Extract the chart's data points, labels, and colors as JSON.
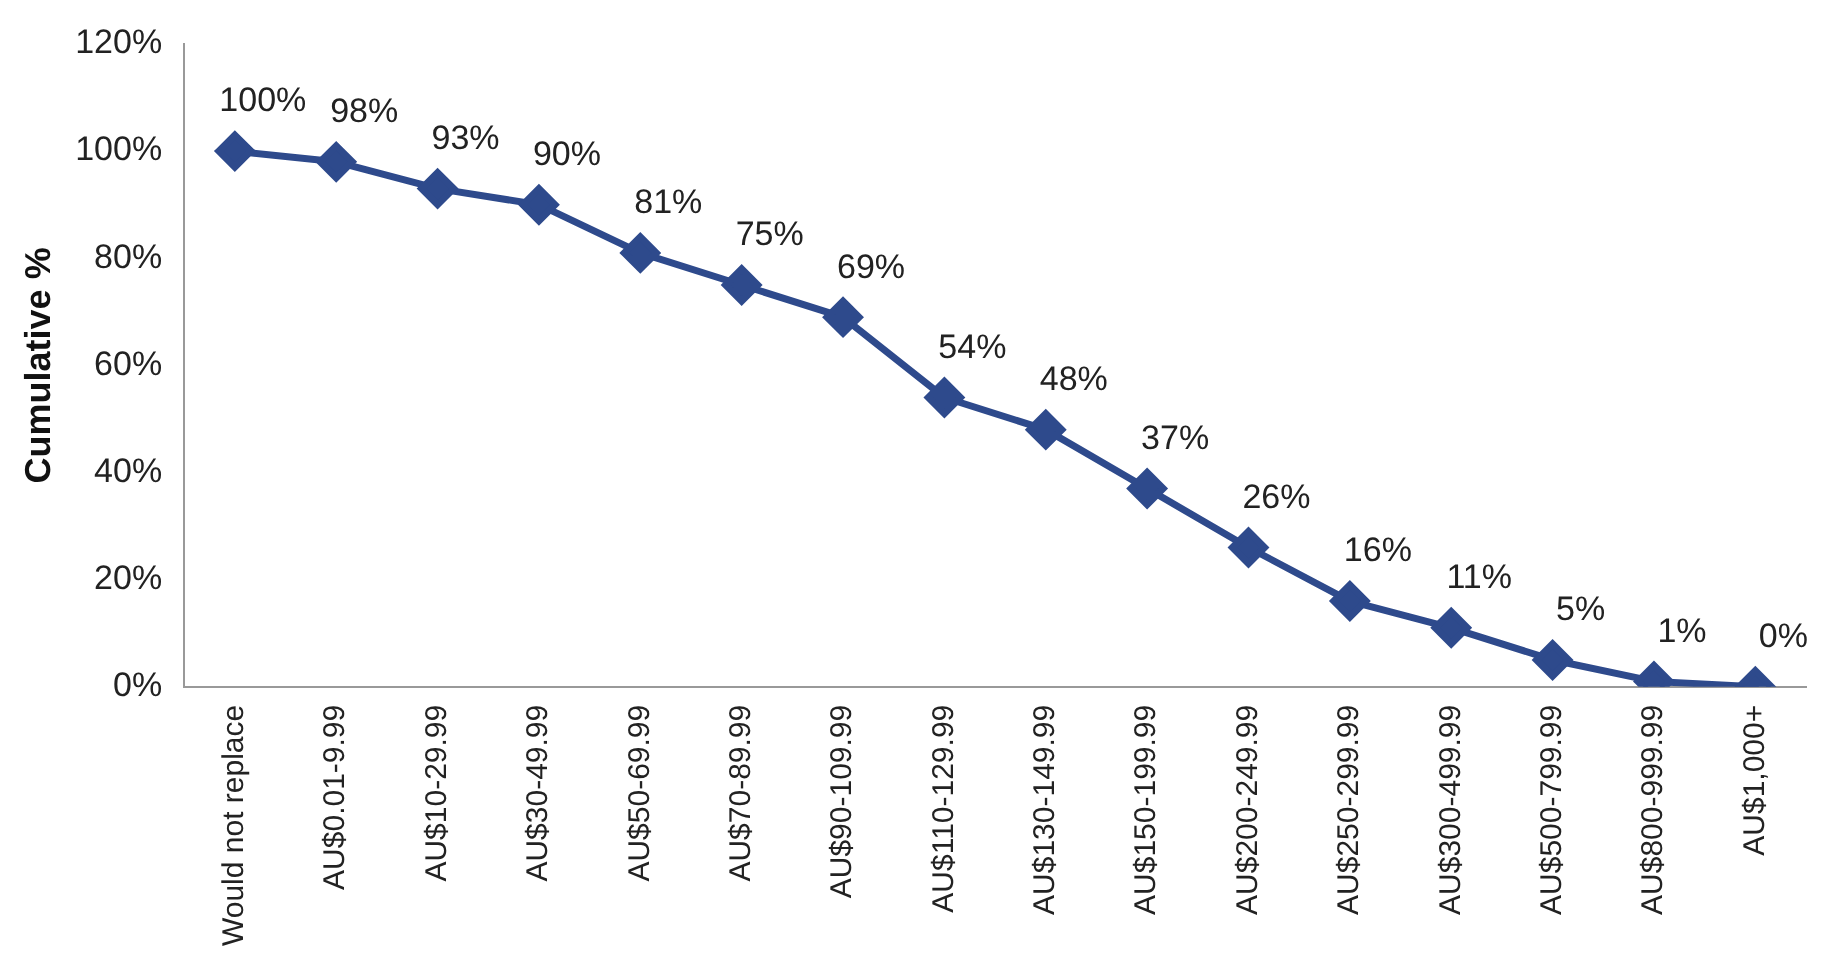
{
  "chart_data": {
    "type": "line",
    "ylabel": "Cumulative %",
    "categories": [
      "Would not replace",
      "AU$0.01-9.99",
      "AU$10-29.99",
      "AU$30-49.99",
      "AU$50-69.99",
      "AU$70-89.99",
      "AU$90-109.99",
      "AU$110-129.99",
      "AU$130-149.99",
      "AU$150-199.99",
      "AU$200-249.99",
      "AU$250-299.99",
      "AU$300-499.99",
      "AU$500-799.99",
      "AU$800-999.99",
      "AU$1,000+"
    ],
    "series": [
      {
        "color": "#2e4a8c",
        "values": [
          100,
          98,
          93,
          90,
          81,
          75,
          69,
          54,
          48,
          37,
          26,
          16,
          11,
          5,
          1,
          0
        ],
        "value_labels": [
          "100%",
          "98%",
          "93%",
          "90%",
          "81%",
          "75%",
          "69%",
          "54%",
          "48%",
          "37%",
          "26%",
          "16%",
          "11%",
          "5%",
          "1%",
          "0%"
        ]
      }
    ],
    "ylim": [
      0,
      120
    ],
    "yticks": [
      {
        "value": 0,
        "label": "0%"
      },
      {
        "value": 20,
        "label": "20%"
      },
      {
        "value": 40,
        "label": "40%"
      },
      {
        "value": 60,
        "label": "60%"
      },
      {
        "value": 80,
        "label": "80%"
      },
      {
        "value": 100,
        "label": "100%"
      },
      {
        "value": 120,
        "label": "120%"
      }
    ],
    "grid": false,
    "legend": false,
    "marker": "diamond",
    "line_style": "solid"
  }
}
